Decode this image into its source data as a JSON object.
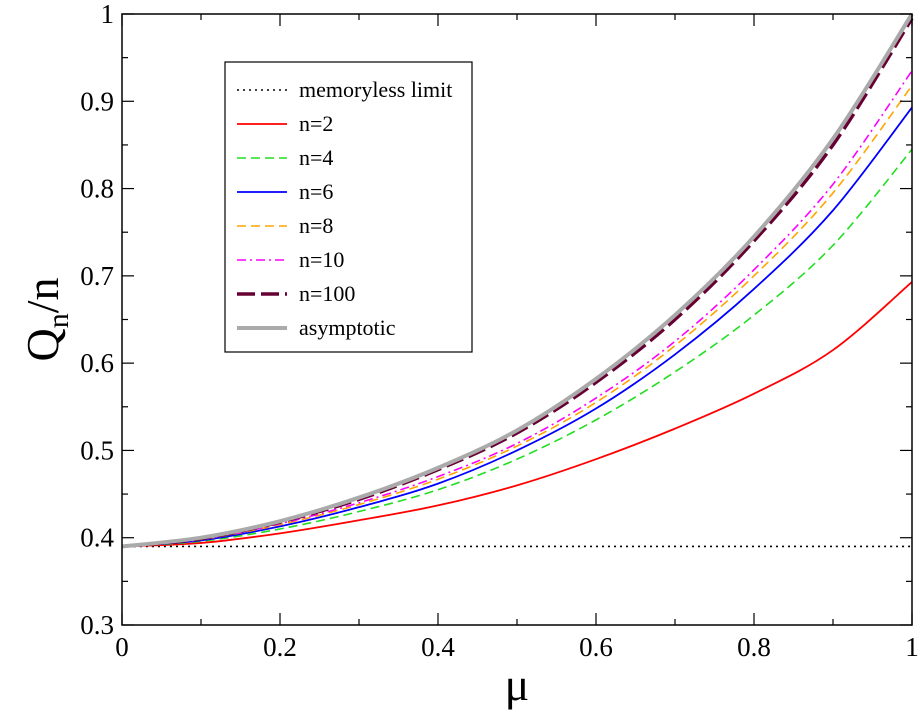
{
  "chart_data": {
    "type": "line",
    "title": "",
    "xlabel": "μ",
    "ylabel_main": "Q",
    "ylabel_sub": "n",
    "ylabel_tail": "/n",
    "xlim": [
      0,
      1
    ],
    "ylim": [
      0.3,
      1
    ],
    "xticks": [
      0,
      0.2,
      0.4,
      0.6,
      0.8,
      1
    ],
    "xtick_labels": [
      "0",
      "0.2",
      "0.4",
      "0.6",
      "0.8",
      "1"
    ],
    "yticks": [
      0.3,
      0.4,
      0.5,
      0.6,
      0.7,
      0.8,
      0.9,
      1
    ],
    "ytick_labels": [
      "0.3",
      "0.4",
      "0.5",
      "0.6",
      "0.7",
      "0.8",
      "0.9",
      "1"
    ],
    "grid": false,
    "legend_position": "top-left",
    "x": [
      0,
      0.1,
      0.2,
      0.3,
      0.4,
      0.5,
      0.6,
      0.7,
      0.8,
      0.9,
      1.0
    ],
    "series": [
      {
        "name": "memoryless limit",
        "color": "#000000",
        "style": "dotted",
        "values": [
          0.39,
          0.39,
          0.39,
          0.39,
          0.39,
          0.39,
          0.39,
          0.39,
          0.39,
          0.39,
          0.39
        ]
      },
      {
        "name": "n=2",
        "color": "#ff0000",
        "style": "solid",
        "values": [
          0.39,
          0.394,
          0.405,
          0.42,
          0.437,
          0.46,
          0.49,
          0.525,
          0.565,
          0.615,
          0.693
        ]
      },
      {
        "name": "n=4",
        "color": "#22dd22",
        "style": "dashed",
        "values": [
          0.39,
          0.396,
          0.41,
          0.43,
          0.455,
          0.49,
          0.535,
          0.59,
          0.655,
          0.735,
          0.845
        ]
      },
      {
        "name": "n=6",
        "color": "#0000ff",
        "style": "solid",
        "values": [
          0.39,
          0.397,
          0.413,
          0.435,
          0.462,
          0.5,
          0.548,
          0.61,
          0.685,
          0.775,
          0.893
        ]
      },
      {
        "name": "n=8",
        "color": "#ffa500",
        "style": "dashed",
        "values": [
          0.39,
          0.398,
          0.415,
          0.438,
          0.467,
          0.505,
          0.555,
          0.62,
          0.7,
          0.795,
          0.918
        ]
      },
      {
        "name": "n=10",
        "color": "#ff00ff",
        "style": "dashdot",
        "values": [
          0.39,
          0.398,
          0.416,
          0.44,
          0.47,
          0.508,
          0.56,
          0.625,
          0.707,
          0.805,
          0.935
        ]
      },
      {
        "name": "n=100",
        "color": "#660033",
        "style": "longdash",
        "values": [
          0.39,
          0.399,
          0.418,
          0.444,
          0.478,
          0.52,
          0.578,
          0.65,
          0.74,
          0.85,
          0.995
        ]
      },
      {
        "name": "asymptotic",
        "color": "#aaaaaa",
        "style": "thick",
        "values": [
          0.39,
          0.4,
          0.419,
          0.446,
          0.48,
          0.523,
          0.582,
          0.655,
          0.745,
          0.857,
          1.0
        ]
      }
    ]
  }
}
